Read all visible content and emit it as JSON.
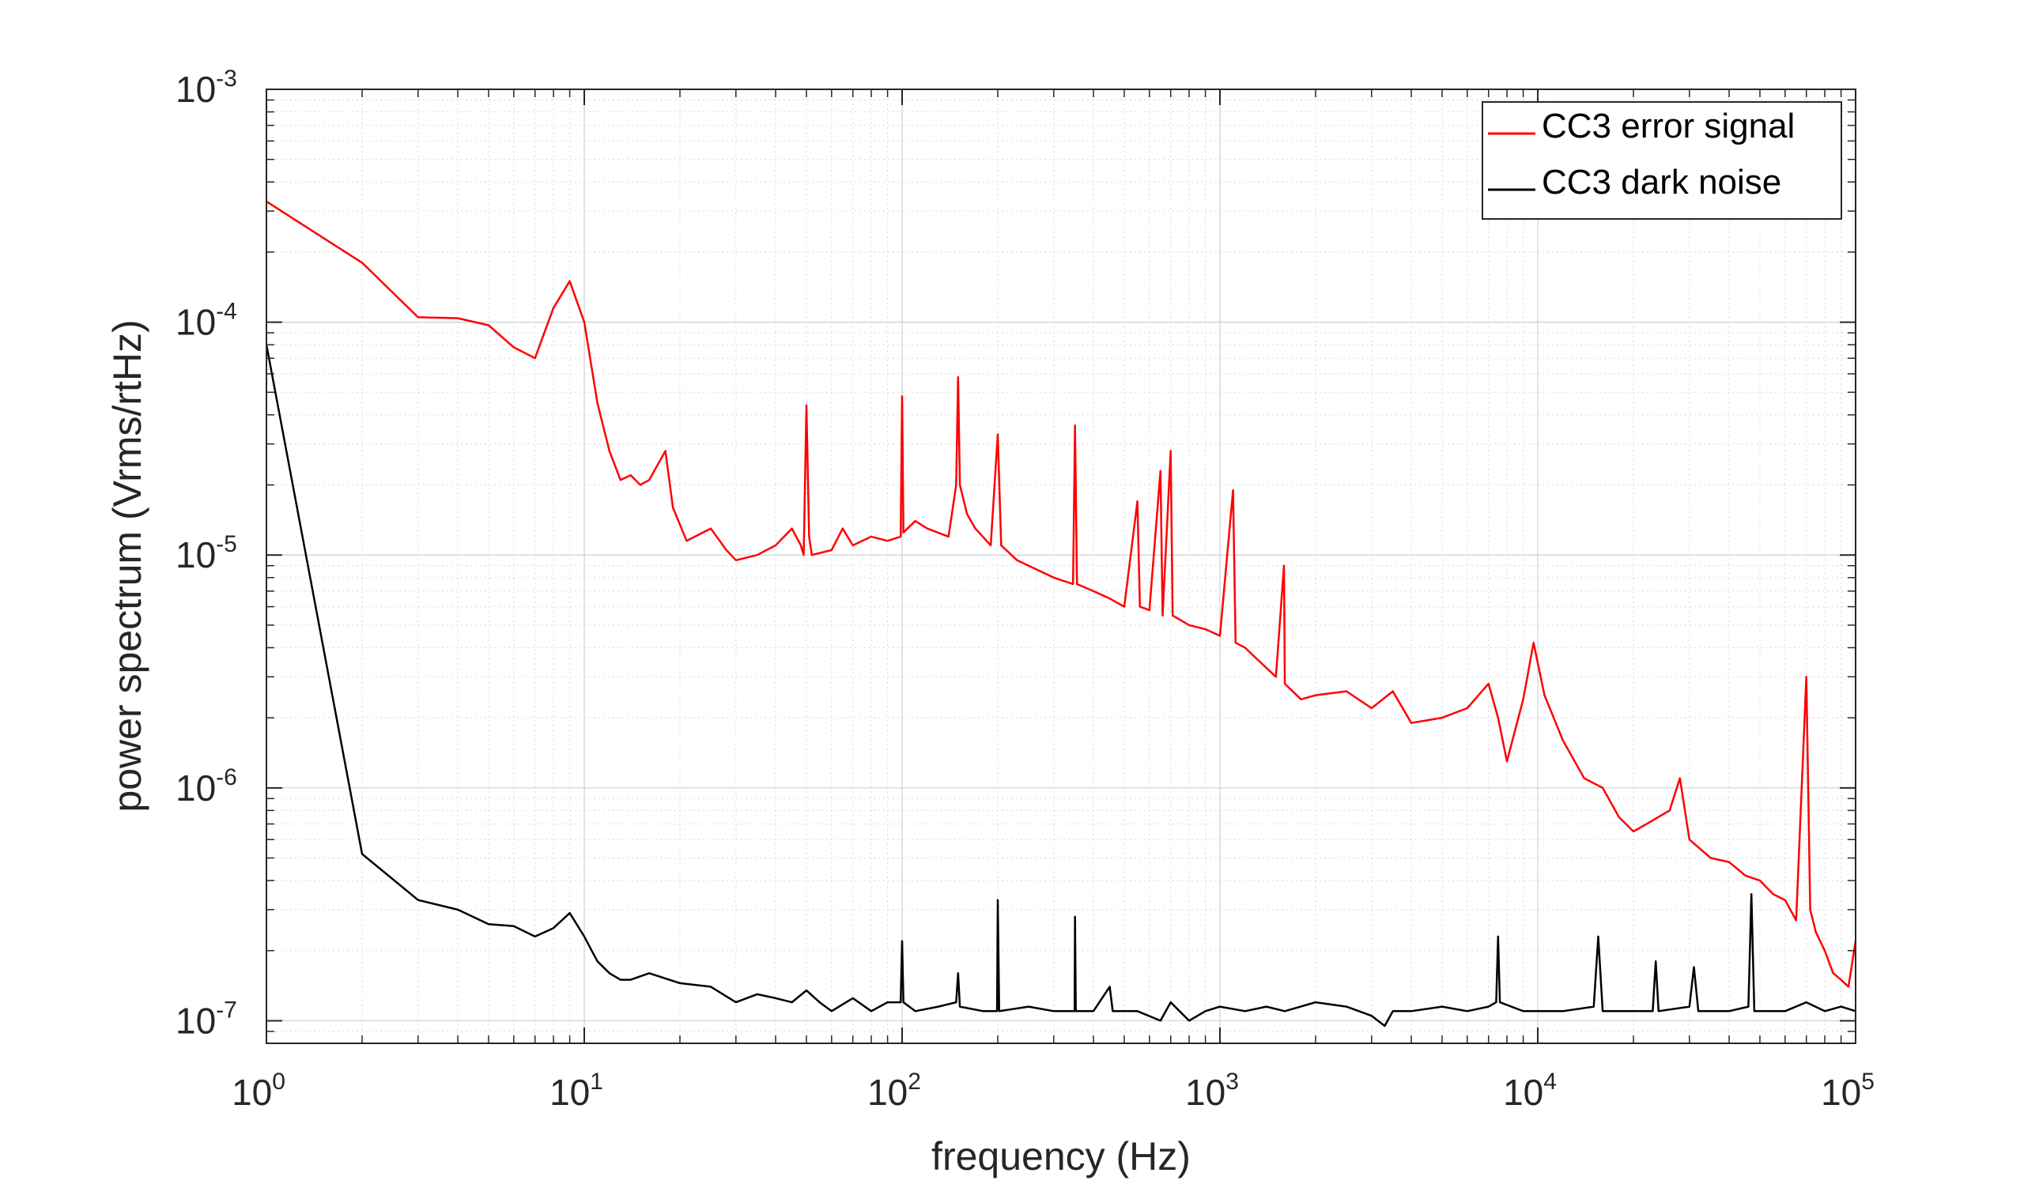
{
  "chart_data": {
    "type": "line",
    "title": "",
    "xlabel": "frequency (Hz)",
    "ylabel": "power spectrum (Vrms/rtHz)",
    "x_scale": "log",
    "y_scale": "log",
    "xlim": [
      1,
      100000
    ],
    "ylim": [
      8e-08,
      0.001
    ],
    "grid": true,
    "minor_grid": true,
    "legend_position": "top-right",
    "x_ticks": [
      {
        "value": 1,
        "base": "10",
        "exp": "0"
      },
      {
        "value": 10,
        "base": "10",
        "exp": "1"
      },
      {
        "value": 100,
        "base": "10",
        "exp": "2"
      },
      {
        "value": 1000,
        "base": "10",
        "exp": "3"
      },
      {
        "value": 10000,
        "base": "10",
        "exp": "4"
      },
      {
        "value": 100000,
        "base": "10",
        "exp": "5"
      }
    ],
    "y_ticks": [
      {
        "value": 1e-07,
        "base": "10",
        "exp": "-7"
      },
      {
        "value": 1e-06,
        "base": "10",
        "exp": "-6"
      },
      {
        "value": 1e-05,
        "base": "10",
        "exp": "-5"
      },
      {
        "value": 0.0001,
        "base": "10",
        "exp": "-4"
      },
      {
        "value": 0.001,
        "base": "10",
        "exp": "-3"
      }
    ],
    "series": [
      {
        "name": "CC3 error signal",
        "color": "#ff0000",
        "points": [
          [
            1,
            0.00033
          ],
          [
            2,
            0.00018
          ],
          [
            3,
            0.000105
          ],
          [
            4,
            0.000104
          ],
          [
            5,
            9.7e-05
          ],
          [
            6,
            7.8e-05
          ],
          [
            7,
            7e-05
          ],
          [
            8,
            0.000115
          ],
          [
            9,
            0.00015
          ],
          [
            10,
            0.0001
          ],
          [
            11,
            4.5e-05
          ],
          [
            12,
            2.8e-05
          ],
          [
            13,
            2.1e-05
          ],
          [
            14,
            2.2e-05
          ],
          [
            15,
            2e-05
          ],
          [
            16,
            2.1e-05
          ],
          [
            18,
            2.8e-05
          ],
          [
            19,
            1.6e-05
          ],
          [
            21,
            1.15e-05
          ],
          [
            25,
            1.3e-05
          ],
          [
            28,
            1.05e-05
          ],
          [
            30,
            9.5e-06
          ],
          [
            35,
            1e-05
          ],
          [
            40,
            1.1e-05
          ],
          [
            45,
            1.3e-05
          ],
          [
            48,
            1.1e-05
          ],
          [
            49,
            1e-05
          ],
          [
            50,
            4.4e-05
          ],
          [
            51,
            1.2e-05
          ],
          [
            52,
            1e-05
          ],
          [
            60,
            1.05e-05
          ],
          [
            65,
            1.3e-05
          ],
          [
            70,
            1.1e-05
          ],
          [
            80,
            1.2e-05
          ],
          [
            90,
            1.15e-05
          ],
          [
            99,
            1.2e-05
          ],
          [
            100,
            4.8e-05
          ],
          [
            101,
            1.25e-05
          ],
          [
            110,
            1.4e-05
          ],
          [
            120,
            1.3e-05
          ],
          [
            140,
            1.2e-05
          ],
          [
            148,
            2e-05
          ],
          [
            150,
            5.8e-05
          ],
          [
            152,
            2e-05
          ],
          [
            160,
            1.5e-05
          ],
          [
            170,
            1.3e-05
          ],
          [
            190,
            1.1e-05
          ],
          [
            200,
            3.3e-05
          ],
          [
            205,
            1.1e-05
          ],
          [
            230,
            9.5e-06
          ],
          [
            250,
            9e-06
          ],
          [
            300,
            8e-06
          ],
          [
            345,
            7.5e-06
          ],
          [
            350,
            3.6e-05
          ],
          [
            355,
            7.5e-06
          ],
          [
            400,
            7e-06
          ],
          [
            450,
            6.5e-06
          ],
          [
            500,
            6e-06
          ],
          [
            550,
            1.7e-05
          ],
          [
            560,
            6e-06
          ],
          [
            600,
            5.8e-06
          ],
          [
            650,
            2.3e-05
          ],
          [
            660,
            5.5e-06
          ],
          [
            700,
            2.8e-05
          ],
          [
            710,
            5.5e-06
          ],
          [
            800,
            5e-06
          ],
          [
            900,
            4.8e-06
          ],
          [
            1000,
            4.5e-06
          ],
          [
            1100,
            1.9e-05
          ],
          [
            1120,
            4.2e-06
          ],
          [
            1200,
            4e-06
          ],
          [
            1300,
            3.6e-06
          ],
          [
            1500,
            3e-06
          ],
          [
            1590,
            9e-06
          ],
          [
            1600,
            2.8e-06
          ],
          [
            1800,
            2.4e-06
          ],
          [
            2000,
            2.5e-06
          ],
          [
            2500,
            2.6e-06
          ],
          [
            3000,
            2.2e-06
          ],
          [
            3500,
            2.6e-06
          ],
          [
            4000,
            1.9e-06
          ],
          [
            5000,
            2e-06
          ],
          [
            6000,
            2.2e-06
          ],
          [
            7000,
            2.8e-06
          ],
          [
            7500,
            2e-06
          ],
          [
            8000,
            1.3e-06
          ],
          [
            9000,
            2.4e-06
          ],
          [
            9700,
            4.2e-06
          ],
          [
            10500,
            2.5e-06
          ],
          [
            12000,
            1.6e-06
          ],
          [
            14000,
            1.1e-06
          ],
          [
            16000,
            1e-06
          ],
          [
            18000,
            7.5e-07
          ],
          [
            20000,
            6.5e-07
          ],
          [
            22000,
            7e-07
          ],
          [
            24000,
            7.5e-07
          ],
          [
            26000,
            8e-07
          ],
          [
            28000,
            1.1e-06
          ],
          [
            30000,
            6e-07
          ],
          [
            35000,
            5e-07
          ],
          [
            40000,
            4.8e-07
          ],
          [
            45000,
            4.2e-07
          ],
          [
            50000,
            4e-07
          ],
          [
            55000,
            3.5e-07
          ],
          [
            60000,
            3.3e-07
          ],
          [
            65000,
            2.7e-07
          ],
          [
            70000,
            3e-06
          ],
          [
            72000,
            3e-07
          ],
          [
            75000,
            2.4e-07
          ],
          [
            80000,
            2e-07
          ],
          [
            85000,
            1.6e-07
          ],
          [
            90000,
            1.5e-07
          ],
          [
            95000,
            1.4e-07
          ],
          [
            100000,
            2.2e-07
          ]
        ]
      },
      {
        "name": "CC3 dark noise",
        "color": "#000000",
        "points": [
          [
            1,
            8e-05
          ],
          [
            2,
            5.2e-07
          ],
          [
            3,
            3.3e-07
          ],
          [
            4,
            3e-07
          ],
          [
            5,
            2.6e-07
          ],
          [
            6,
            2.55e-07
          ],
          [
            7,
            2.3e-07
          ],
          [
            8,
            2.5e-07
          ],
          [
            9,
            2.9e-07
          ],
          [
            10,
            2.3e-07
          ],
          [
            11,
            1.8e-07
          ],
          [
            12,
            1.6e-07
          ],
          [
            13,
            1.5e-07
          ],
          [
            14,
            1.5e-07
          ],
          [
            16,
            1.6e-07
          ],
          [
            20,
            1.45e-07
          ],
          [
            25,
            1.4e-07
          ],
          [
            30,
            1.2e-07
          ],
          [
            35,
            1.3e-07
          ],
          [
            40,
            1.25e-07
          ],
          [
            45,
            1.2e-07
          ],
          [
            50,
            1.35e-07
          ],
          [
            55,
            1.2e-07
          ],
          [
            60,
            1.1e-07
          ],
          [
            70,
            1.25e-07
          ],
          [
            80,
            1.1e-07
          ],
          [
            90,
            1.2e-07
          ],
          [
            99,
            1.2e-07
          ],
          [
            100,
            2.2e-07
          ],
          [
            101,
            1.2e-07
          ],
          [
            110,
            1.1e-07
          ],
          [
            130,
            1.15e-07
          ],
          [
            148,
            1.2e-07
          ],
          [
            150,
            1.6e-07
          ],
          [
            152,
            1.15e-07
          ],
          [
            180,
            1.1e-07
          ],
          [
            199,
            1.1e-07
          ],
          [
            200,
            3.3e-07
          ],
          [
            202,
            1.1e-07
          ],
          [
            250,
            1.15e-07
          ],
          [
            300,
            1.1e-07
          ],
          [
            349,
            1.1e-07
          ],
          [
            350,
            2.8e-07
          ],
          [
            352,
            1.1e-07
          ],
          [
            400,
            1.1e-07
          ],
          [
            450,
            1.4e-07
          ],
          [
            460,
            1.1e-07
          ],
          [
            550,
            1.1e-07
          ],
          [
            650,
            1e-07
          ],
          [
            700,
            1.2e-07
          ],
          [
            800,
            1e-07
          ],
          [
            900,
            1.1e-07
          ],
          [
            1000,
            1.15e-07
          ],
          [
            1200,
            1.1e-07
          ],
          [
            1400,
            1.15e-07
          ],
          [
            1600,
            1.1e-07
          ],
          [
            2000,
            1.2e-07
          ],
          [
            2500,
            1.15e-07
          ],
          [
            3000,
            1.05e-07
          ],
          [
            3300,
            9.5e-08
          ],
          [
            3500,
            1.1e-07
          ],
          [
            4000,
            1.1e-07
          ],
          [
            5000,
            1.15e-07
          ],
          [
            6000,
            1.1e-07
          ],
          [
            7000,
            1.15e-07
          ],
          [
            7400,
            1.2e-07
          ],
          [
            7500,
            2.3e-07
          ],
          [
            7600,
            1.2e-07
          ],
          [
            9000,
            1.1e-07
          ],
          [
            12000,
            1.1e-07
          ],
          [
            15000,
            1.15e-07
          ],
          [
            15500,
            2.3e-07
          ],
          [
            16000,
            1.1e-07
          ],
          [
            20000,
            1.1e-07
          ],
          [
            23000,
            1.1e-07
          ],
          [
            23500,
            1.8e-07
          ],
          [
            24000,
            1.1e-07
          ],
          [
            30000,
            1.15e-07
          ],
          [
            31000,
            1.7e-07
          ],
          [
            32000,
            1.1e-07
          ],
          [
            40000,
            1.1e-07
          ],
          [
            46000,
            1.15e-07
          ],
          [
            47000,
            3.5e-07
          ],
          [
            48000,
            1.1e-07
          ],
          [
            60000,
            1.1e-07
          ],
          [
            70000,
            1.2e-07
          ],
          [
            80000,
            1.1e-07
          ],
          [
            90000,
            1.15e-07
          ],
          [
            100000,
            1.1e-07
          ]
        ]
      }
    ]
  }
}
